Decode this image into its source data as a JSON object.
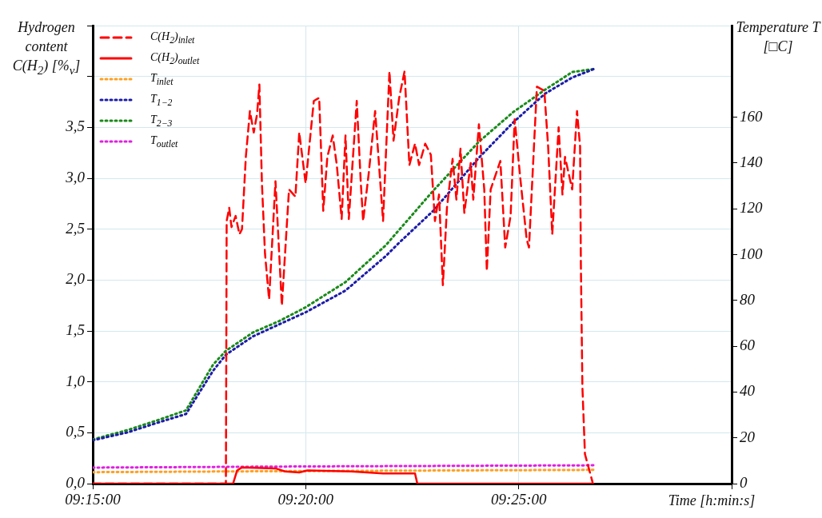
{
  "chart_data": {
    "type": "line",
    "ylabel": "Hydrogen content C(H$_{2}$) [%$_{v}$]",
    "y2label": "Temperature T [□C]",
    "xlabel": "Time [h:min:s]",
    "xlim": [
      9.25,
      9.5
    ],
    "xticks": [
      {
        "value": 9.25,
        "label": "09:15:00"
      },
      {
        "value": 9.3333,
        "label": "09:20:00"
      },
      {
        "value": 9.4167,
        "label": "09:25:00"
      },
      {
        "value": 9.5,
        "label": null
      }
    ],
    "ylim": [
      0,
      4.5
    ],
    "yticks": [
      {
        "value": 0,
        "label": "0,0"
      },
      {
        "value": 0.5,
        "label": "0,5"
      },
      {
        "value": 1,
        "label": "1,0"
      },
      {
        "value": 1.5,
        "label": "1,5"
      },
      {
        "value": 2,
        "label": "2,0"
      },
      {
        "value": 2.5,
        "label": "2,5"
      },
      {
        "value": 3,
        "label": "3,0"
      },
      {
        "value": 3.5,
        "label": "3,5"
      },
      {
        "value": 4,
        "label": null
      },
      {
        "value": 4.5,
        "label": null
      }
    ],
    "y2lim": [
      0,
      200
    ],
    "y2ticks": [
      0,
      20,
      40,
      60,
      80,
      100,
      120,
      140,
      160
    ],
    "grid": true,
    "legend": "top left",
    "marker": "none",
    "series": [
      {
        "name": "C(H$_{2}$)$_{inlet}$",
        "color": "#ff0000",
        "line_style": "dashed",
        "axis": "y",
        "x": [
          9.25,
          9.3012,
          9.3021,
          9.3024,
          9.3034,
          9.3043,
          9.3059,
          9.3074,
          9.3084,
          9.3099,
          9.3115,
          9.313,
          9.3143,
          9.3152,
          9.3162,
          9.3174,
          9.319,
          9.3215,
          9.324,
          9.3268,
          9.3293,
          9.3308,
          9.3333,
          9.3365,
          9.3386,
          9.3402,
          9.3418,
          9.3439,
          9.3455,
          9.3474,
          9.3489,
          9.3502,
          9.3533,
          9.3549,
          9.3558,
          9.358,
          9.3605,
          9.3636,
          9.3661,
          9.3677,
          9.3699,
          9.372,
          9.3739,
          9.3761,
          9.3777,
          9.3801,
          9.3823,
          9.3839,
          9.3855,
          9.387,
          9.3886,
          9.3908,
          9.3923,
          9.3939,
          9.3954,
          9.3979,
          9.3989,
          9.4011,
          9.4032,
          9.4042,
          9.4057,
          9.4095,
          9.4114,
          9.4135,
          9.4151,
          9.4173,
          9.4198,
          9.4207,
          9.4238,
          9.4267,
          9.4282,
          9.4298,
          9.4323,
          9.4338,
          9.4348,
          9.4376,
          9.4395,
          9.4407,
          9.441,
          9.4416,
          9.4426,
          9.4454,
          9.4457
        ],
        "values": [
          0,
          0,
          0,
          2.58,
          2.71,
          2.52,
          2.63,
          2.45,
          2.5,
          3.21,
          3.66,
          3.45,
          3.63,
          3.92,
          2.95,
          2.26,
          1.81,
          2.97,
          1.75,
          2.89,
          2.82,
          3.45,
          2.95,
          3.76,
          3.79,
          2.68,
          3.21,
          3.42,
          3.13,
          2.6,
          3.42,
          2.6,
          3.76,
          2.95,
          2.58,
          3.05,
          3.66,
          2.58,
          4.05,
          3.37,
          3.79,
          4.05,
          3.13,
          3.34,
          3.13,
          3.34,
          3.23,
          2.58,
          2.84,
          1.95,
          2.71,
          3.19,
          2.79,
          3.29,
          2.66,
          3.15,
          2.79,
          3.53,
          2.89,
          2.09,
          2.89,
          3.17,
          2.32,
          2.63,
          3.58,
          3,
          2.4,
          2.32,
          3.9,
          3.86,
          3.31,
          2.45,
          3.5,
          2.84,
          3.21,
          2.89,
          3.66,
          3.31,
          2.16,
          0.95,
          0.29,
          0.03,
          0
        ]
      },
      {
        "name": "C(H$_{2}$)$_{outlet}$",
        "color": "#ff0000",
        "line_style": "solid",
        "axis": "y",
        "x": [
          9.25,
          9.3049,
          9.3065,
          9.3084,
          9.3215,
          9.3252,
          9.3308,
          9.334,
          9.3511,
          9.3574,
          9.3636,
          9.3761,
          9.377,
          9.4457
        ],
        "values": [
          0,
          0,
          0.13,
          0.16,
          0.15,
          0.12,
          0.11,
          0.13,
          0.12,
          0.11,
          0.1,
          0.1,
          0,
          0
        ]
      },
      {
        "name": "T$_{inlet}$",
        "color": "#ffa020",
        "line_style": "dotted",
        "axis": "y2",
        "x": [
          9.25,
          9.3333,
          9.4463
        ],
        "values": [
          5,
          5.5,
          6
        ]
      },
      {
        "name": "T$_{1−2}$",
        "color": "#1c1ca8",
        "line_style": "dotted",
        "axis": "y2",
        "x": [
          9.25,
          9.2637,
          9.2762,
          9.2865,
          9.2918,
          9.2971,
          9.3021,
          9.3127,
          9.323,
          9.3333,
          9.3489,
          9.3646,
          9.3699,
          9.3833,
          9.4011,
          9.4145,
          9.427,
          9.4376,
          9.4463
        ],
        "values": [
          18.9,
          22.4,
          26.9,
          30.4,
          39.9,
          49.3,
          56.3,
          64.3,
          69.6,
          74.8,
          84.3,
          99.3,
          105.2,
          119.2,
          142.3,
          157.7,
          170.3,
          177.3,
          181.1
        ]
      },
      {
        "name": "T$_{2−3}$",
        "color": "#1a8a1a",
        "line_style": "dotted",
        "axis": "y2",
        "x": [
          9.25,
          9.2637,
          9.2762,
          9.2865,
          9.2918,
          9.2971,
          9.3021,
          9.3127,
          9.323,
          9.3333,
          9.3489,
          9.3646,
          9.3699,
          9.3833,
          9.4011,
          9.4145,
          9.427,
          9.4376,
          9.4463
        ],
        "values": [
          19.3,
          23.4,
          28,
          32,
          42,
          52,
          58,
          66,
          71,
          77,
          88,
          104,
          110.8,
          128,
          149.3,
          162.2,
          172,
          179.7,
          181.1
        ]
      },
      {
        "name": "T$_{outlet}$",
        "color": "#e020e0",
        "line_style": "dotted",
        "axis": "y2",
        "x": [
          9.25,
          9.3333,
          9.4463
        ],
        "values": [
          7,
          7.5,
          8
        ]
      }
    ]
  }
}
